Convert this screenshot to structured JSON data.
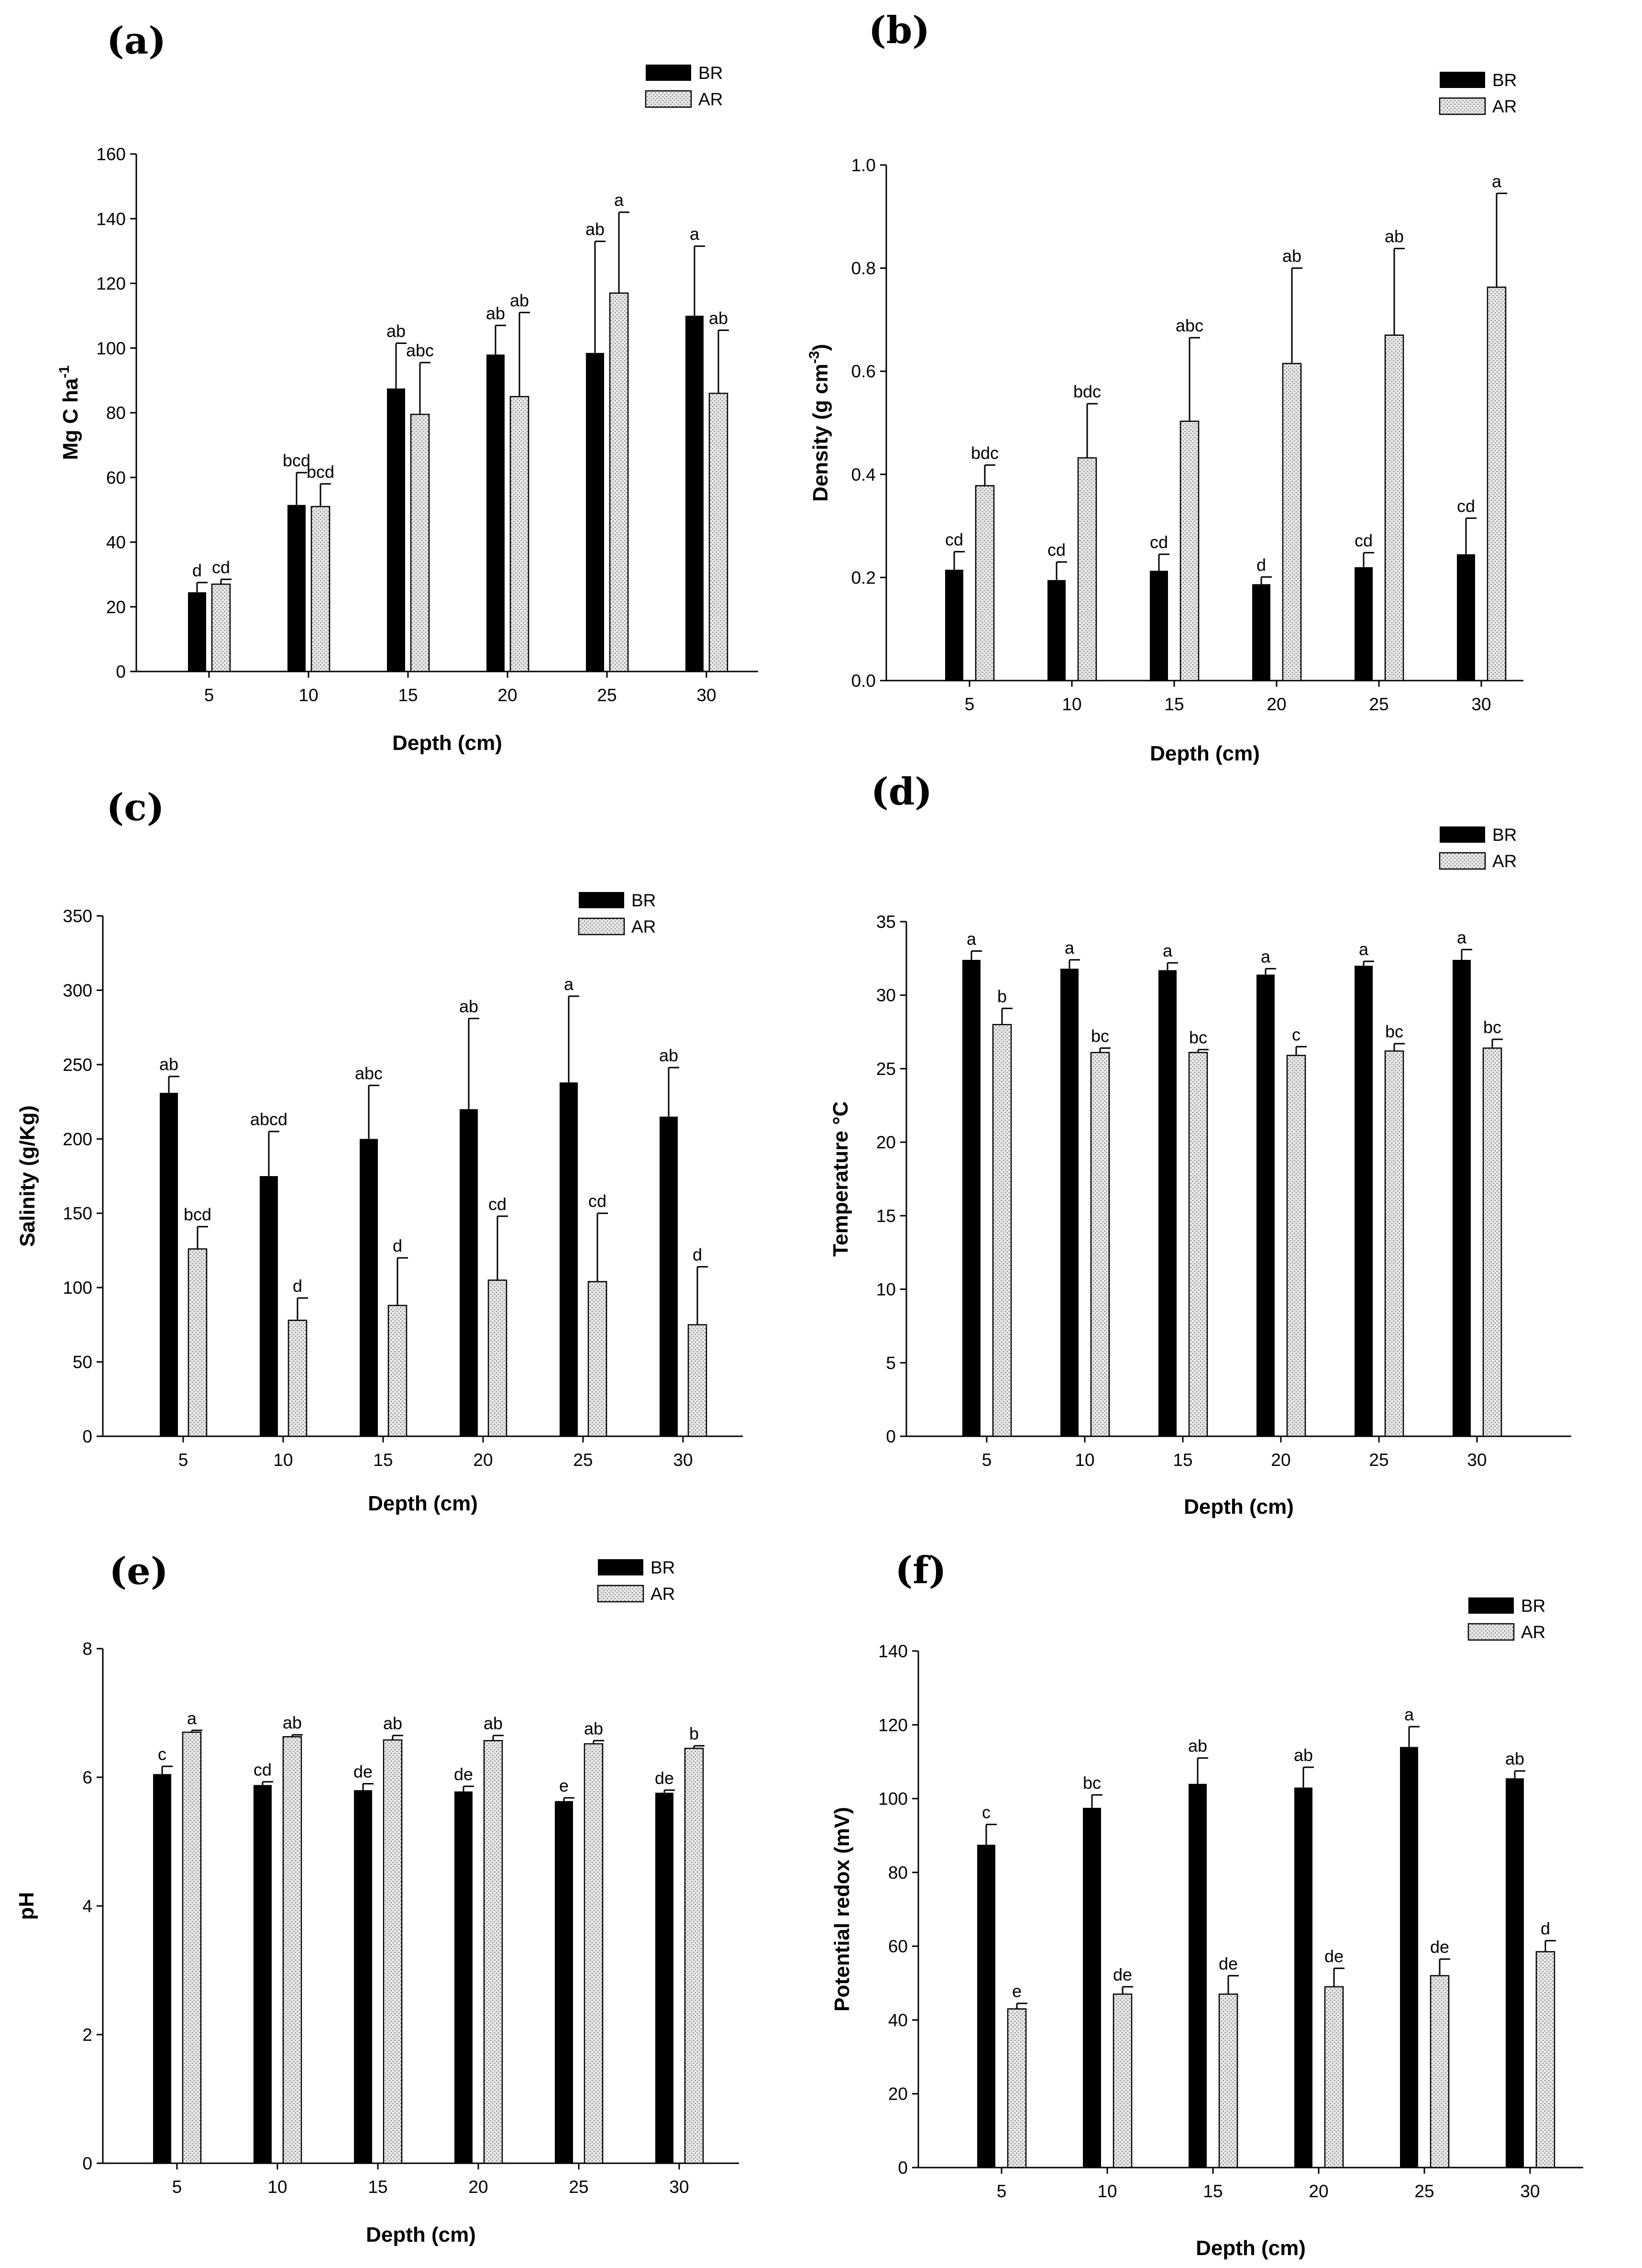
{
  "legend": {
    "series": [
      "BR",
      "AR"
    ]
  },
  "chart_data": [
    {
      "id": "a",
      "type": "bar",
      "panel_label": "(a)",
      "xlabel": "Depth (cm)",
      "ylabel_main": "Mg C ha",
      "ylabel_sup": "-1",
      "ylabel_tail": "",
      "categories": [
        "5",
        "10",
        "15",
        "20",
        "25",
        "30"
      ],
      "ylim": [
        0,
        160
      ],
      "yticks": [
        0,
        20,
        40,
        60,
        80,
        100,
        120,
        140,
        160
      ],
      "series": [
        {
          "name": "BR",
          "values": [
            24.5,
            51.5,
            87.5,
            98,
            98.5,
            110
          ],
          "errors": [
            3,
            10,
            14,
            9,
            34.5,
            21.5
          ],
          "labels": [
            "d",
            "bcd",
            "ab",
            "ab",
            "ab",
            "a"
          ]
        },
        {
          "name": "AR",
          "values": [
            27,
            51,
            79.5,
            85,
            117,
            86
          ],
          "errors": [
            1.5,
            7,
            16,
            26,
            25,
            19.5
          ],
          "labels": [
            "cd",
            "bcd",
            "abc",
            "ab",
            "a",
            "ab"
          ]
        }
      ]
    },
    {
      "id": "b",
      "type": "bar",
      "panel_label": "(b)",
      "xlabel": "Depth (cm)",
      "ylabel_main": "Density (g cm",
      "ylabel_sup": "-3",
      "ylabel_tail": ")",
      "categories": [
        "5",
        "10",
        "15",
        "20",
        "25",
        "30"
      ],
      "ylim": [
        0,
        1.0
      ],
      "yticks": [
        0.0,
        0.2,
        0.4,
        0.6,
        0.8,
        1.0
      ],
      "ytick_labels": [
        "0.0",
        "0.2",
        "0.4",
        "0.6",
        "0.8",
        "1.0"
      ],
      "series": [
        {
          "name": "BR",
          "values": [
            0.215,
            0.195,
            0.213,
            0.187,
            0.22,
            0.245
          ],
          "errors": [
            0.035,
            0.035,
            0.032,
            0.014,
            0.028,
            0.07
          ],
          "labels": [
            "cd",
            "cd",
            "cd",
            "d",
            "cd",
            "cd"
          ]
        },
        {
          "name": "AR",
          "values": [
            0.378,
            0.432,
            0.503,
            0.615,
            0.67,
            0.763
          ],
          "errors": [
            0.04,
            0.105,
            0.162,
            0.185,
            0.168,
            0.182
          ],
          "labels": [
            "bdc",
            "bdc",
            "abc",
            "ab",
            "ab",
            "a"
          ]
        }
      ]
    },
    {
      "id": "c",
      "type": "bar",
      "panel_label": "(c)",
      "xlabel": "Depth (cm)",
      "ylabel_main": "Salinity (g/Kg)",
      "ylabel_sup": "",
      "ylabel_tail": "",
      "categories": [
        "5",
        "10",
        "15",
        "20",
        "25",
        "30"
      ],
      "ylim": [
        0,
        350
      ],
      "yticks": [
        0,
        50,
        100,
        150,
        200,
        250,
        300,
        350
      ],
      "series": [
        {
          "name": "BR",
          "values": [
            231,
            175,
            200,
            220,
            238,
            215
          ],
          "errors": [
            11,
            30,
            36,
            61,
            58,
            33
          ],
          "labels": [
            "ab",
            "abcd",
            "abc",
            "ab",
            "a",
            "ab"
          ]
        },
        {
          "name": "AR",
          "values": [
            126,
            78,
            88,
            105,
            104,
            75
          ],
          "errors": [
            15,
            15,
            32,
            43,
            46,
            39
          ],
          "labels": [
            "bcd",
            "d",
            "d",
            "cd",
            "cd",
            "d"
          ]
        }
      ]
    },
    {
      "id": "d",
      "type": "bar",
      "panel_label": "(d)",
      "xlabel": "Depth (cm)",
      "ylabel_main": "Temperature °C",
      "ylabel_sup": "",
      "ylabel_tail": "",
      "categories": [
        "5",
        "10",
        "15",
        "20",
        "25",
        "30"
      ],
      "ylim": [
        0,
        35
      ],
      "yticks": [
        0,
        5,
        10,
        15,
        20,
        25,
        30,
        35
      ],
      "series": [
        {
          "name": "BR",
          "values": [
            32.4,
            31.8,
            31.7,
            31.4,
            32.0,
            32.4
          ],
          "errors": [
            0.6,
            0.6,
            0.5,
            0.4,
            0.3,
            0.7
          ],
          "labels": [
            "a",
            "a",
            "a",
            "a",
            "a",
            "a"
          ]
        },
        {
          "name": "AR",
          "values": [
            28.0,
            26.1,
            26.1,
            25.9,
            26.2,
            26.4
          ],
          "errors": [
            1.1,
            0.3,
            0.2,
            0.6,
            0.5,
            0.6
          ],
          "labels": [
            "b",
            "bc",
            "bc",
            "c",
            "bc",
            "bc"
          ]
        }
      ]
    },
    {
      "id": "e",
      "type": "bar",
      "panel_label": "(e)",
      "xlabel": "Depth (cm)",
      "ylabel_main": "pH",
      "ylabel_sup": "",
      "ylabel_tail": "",
      "categories": [
        "5",
        "10",
        "15",
        "20",
        "25",
        "30"
      ],
      "ylim": [
        0,
        8
      ],
      "yticks": [
        0,
        2,
        4,
        6,
        8
      ],
      "series": [
        {
          "name": "BR",
          "values": [
            6.05,
            5.88,
            5.8,
            5.78,
            5.63,
            5.76
          ],
          "errors": [
            0.12,
            0.05,
            0.1,
            0.08,
            0.05,
            0.04
          ],
          "labels": [
            "c",
            "cd",
            "de",
            "de",
            "e",
            "de"
          ]
        },
        {
          "name": "AR",
          "values": [
            6.7,
            6.63,
            6.58,
            6.57,
            6.52,
            6.45
          ],
          "errors": [
            0.03,
            0.03,
            0.07,
            0.08,
            0.05,
            0.04
          ],
          "labels": [
            "a",
            "ab",
            "ab",
            "ab",
            "ab",
            "b"
          ]
        }
      ]
    },
    {
      "id": "f",
      "type": "bar",
      "panel_label": "(f)",
      "xlabel": "Depth (cm)",
      "ylabel_main": "Potential redox (mV)",
      "ylabel_sup": "",
      "ylabel_tail": "",
      "categories": [
        "5",
        "10",
        "15",
        "20",
        "25",
        "30"
      ],
      "ylim": [
        0,
        140
      ],
      "yticks": [
        0,
        20,
        40,
        60,
        80,
        100,
        120,
        140
      ],
      "series": [
        {
          "name": "BR",
          "values": [
            87.5,
            97.5,
            104,
            103,
            114,
            105.5
          ],
          "errors": [
            5.5,
            3.5,
            7,
            5.5,
            5.5,
            2
          ],
          "labels": [
            "c",
            "bc",
            "ab",
            "ab",
            "a",
            "ab"
          ]
        },
        {
          "name": "AR",
          "values": [
            43,
            47,
            47,
            49,
            52,
            58.5
          ],
          "errors": [
            1.5,
            2,
            5,
            5,
            4.5,
            3
          ],
          "labels": [
            "e",
            "de",
            "de",
            "de",
            "de",
            "d"
          ]
        }
      ]
    }
  ]
}
